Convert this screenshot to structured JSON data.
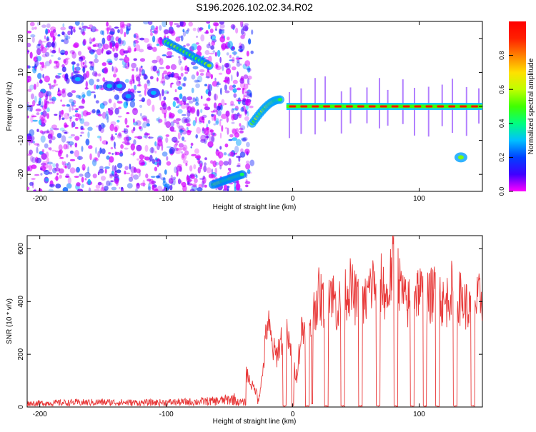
{
  "figure": {
    "title": "S196.2026.102.02.34.R02"
  },
  "chart_data": [
    {
      "type": "heatmap",
      "xlabel": "Height of straight line (km)",
      "ylabel": "Frequency (Hz)",
      "xlim": [
        -210,
        150
      ],
      "ylim": [
        -25,
        25
      ],
      "xticks": [
        -200,
        -100,
        0,
        100
      ],
      "yticks": [
        -20,
        -10,
        0,
        10,
        20
      ],
      "colorbar": {
        "label": "Normalized spectral amplitude",
        "range": [
          0,
          1
        ],
        "ticks": [
          0.0,
          0.2,
          0.4,
          0.6,
          0.8
        ],
        "tick_labels": [
          "0.0",
          "0.2",
          "0.4",
          "0.6",
          "0.8"
        ],
        "colormap": [
          "#ff00ff",
          "#4000ff",
          "#0040ff",
          "#00c0ff",
          "#00ff80",
          "#40ff00",
          "#c0ff00",
          "#ffe000",
          "#ff8000",
          "#ff2000",
          "#ff0000"
        ]
      },
      "features": [
        {
          "name": "noise field",
          "x_range": [
            -210,
            -32
          ],
          "freq_range": [
            -25,
            25
          ],
          "amplitude": 0.1
        },
        {
          "name": "blob",
          "x": -170,
          "y": 8,
          "amplitude": 0.3
        },
        {
          "name": "blob",
          "x": -145,
          "y": 6,
          "amplitude": 0.32
        },
        {
          "name": "blob",
          "x": -137,
          "y": 6,
          "amplitude": 0.3
        },
        {
          "name": "blob",
          "x": -130,
          "y": 3,
          "amplitude": 0.28
        },
        {
          "name": "blob",
          "x": -110,
          "y": 4,
          "amplitude": 0.3
        },
        {
          "name": "streak",
          "from": [
            -100,
            19
          ],
          "to": [
            -66,
            12
          ],
          "amplitude": 0.5
        },
        {
          "name": "streak",
          "from": [
            -63,
            -23
          ],
          "to": [
            -40,
            -20
          ],
          "amplitude": 0.5
        },
        {
          "name": "rising arc",
          "from": [
            -32,
            -5
          ],
          "to": [
            -10,
            2
          ],
          "amplitude": 0.55
        },
        {
          "name": "carrier line",
          "from": [
            -5,
            0
          ],
          "to": [
            150,
            0
          ],
          "amplitude": 0.95
        },
        {
          "name": "blob",
          "x": 133,
          "y": -15,
          "amplitude": 0.55
        }
      ]
    },
    {
      "type": "line",
      "xlabel": "Height of straight line (km)",
      "ylabel": "SNR (10 * v/v)",
      "xlim": [
        -210,
        150
      ],
      "ylim": [
        0,
        650
      ],
      "xticks": [
        -200,
        -100,
        0,
        100
      ],
      "yticks": [
        0,
        200,
        400,
        600
      ],
      "color": "#e83838",
      "segments": [
        {
          "x": [
            -210,
            -180,
            -150,
            -120,
            -90,
            -60,
            -45
          ],
          "y": [
            15,
            18,
            20,
            18,
            20,
            25,
            35
          ]
        },
        {
          "x": [
            -37,
            -33,
            -30,
            -27,
            -24,
            -20,
            -16,
            -13,
            -8,
            -5,
            -1,
            3,
            7,
            11,
            15
          ],
          "y": [
            140,
            90,
            70,
            40,
            120,
            340,
            230,
            200,
            280,
            290,
            200,
            120,
            300,
            310,
            280
          ]
        },
        {
          "x": [
            16,
            20,
            25,
            30,
            35,
            40,
            45,
            50,
            55,
            60,
            65,
            70,
            75,
            80,
            85,
            90,
            95,
            100,
            105,
            110,
            115,
            120,
            125,
            130,
            135,
            140,
            145,
            150
          ],
          "y": [
            360,
            440,
            400,
            470,
            380,
            440,
            470,
            420,
            380,
            450,
            500,
            480,
            420,
            600,
            470,
            390,
            440,
            460,
            410,
            440,
            460,
            390,
            460,
            440,
            410,
            380,
            400,
            440
          ]
        }
      ],
      "dropouts": [
        {
          "x": [
            -8,
            -5
          ]
        },
        {
          "x": [
            -1,
            1
          ]
        },
        {
          "x": [
            10,
            13
          ]
        },
        {
          "x": [
            25,
            28
          ]
        },
        {
          "x": [
            38,
            41
          ]
        },
        {
          "x": [
            52,
            55
          ]
        },
        {
          "x": [
            66,
            69
          ]
        },
        {
          "x": [
            80,
            83
          ]
        },
        {
          "x": [
            93,
            96
          ]
        },
        {
          "x": [
            103,
            106
          ]
        },
        {
          "x": [
            113,
            116
          ]
        },
        {
          "x": [
            127,
            130
          ]
        },
        {
          "x": [
            141,
            144
          ]
        }
      ]
    }
  ]
}
